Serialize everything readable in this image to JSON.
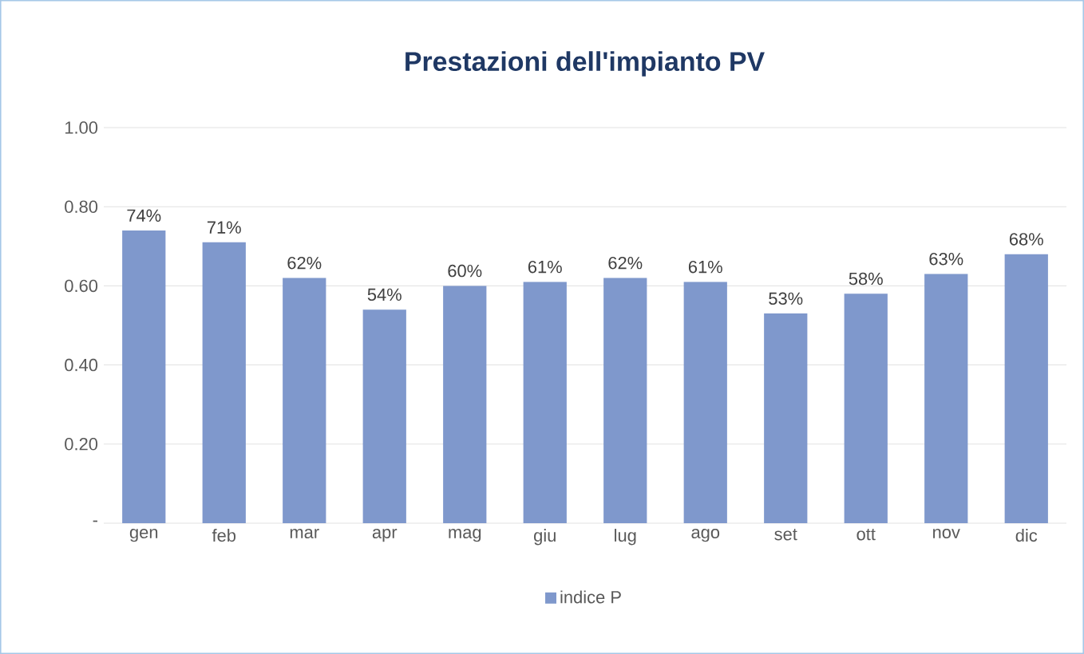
{
  "chart_data": {
    "type": "bar",
    "title": "Prestazioni dell'impianto PV",
    "categories": [
      "gen",
      "feb",
      "mar",
      "apr",
      "mag",
      "giu",
      "lug",
      "ago",
      "set",
      "ott",
      "nov",
      "dic"
    ],
    "series": [
      {
        "name": "indice P",
        "color": "#7f98cc",
        "values": [
          0.74,
          0.71,
          0.62,
          0.54,
          0.6,
          0.61,
          0.62,
          0.61,
          0.53,
          0.58,
          0.63,
          0.68
        ],
        "value_labels": [
          "74%",
          "71%",
          "62%",
          "54%",
          "60%",
          "61%",
          "62%",
          "61%",
          "53%",
          "58%",
          "63%",
          "68%"
        ]
      }
    ],
    "ylim": [
      0,
      1.0
    ],
    "yticks": [
      {
        "value": 0,
        "label": "-"
      },
      {
        "value": 0.2,
        "label": "0.20"
      },
      {
        "value": 0.4,
        "label": "0.40"
      },
      {
        "value": 0.6,
        "label": "0.60"
      },
      {
        "value": 0.8,
        "label": "0.80"
      },
      {
        "value": 1.0,
        "label": "1.00"
      }
    ],
    "grid": "y",
    "legend": "bottom"
  }
}
